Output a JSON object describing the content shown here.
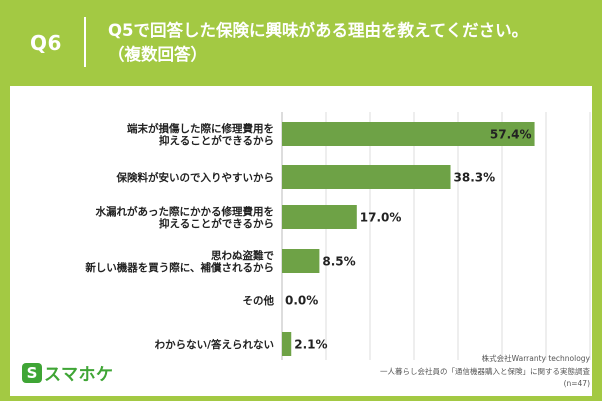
{
  "header": {
    "qnum": "Q6",
    "title": "Q5で回答した保険に興味がある理由を教えてください。",
    "subtitle": "（複数回答）"
  },
  "footer": {
    "logo_mark": "S",
    "logo_text": "スマホケ",
    "source1": "株式会社Warranty technology",
    "source2": "一人暮らし会社員の「通信機器購入と保険」に関する実態調査",
    "n": "(n=47)"
  },
  "colors": {
    "background": "#a3c943",
    "bar": "#6ea246",
    "text": "#222222"
  },
  "chart_data": {
    "type": "bar",
    "orientation": "horizontal",
    "categories": [
      [
        "端末が損傷した際に修理費用を",
        "抑えることができるから"
      ],
      [
        "保険料が安いので入りやすいから"
      ],
      [
        "水漏れがあった際にかかる修理費用を",
        "抑えることができるから"
      ],
      [
        "思わぬ盗難で",
        "新しい機器を買う際に、補償されるから"
      ],
      [
        "その他"
      ],
      [
        "わからない/答えられない"
      ]
    ],
    "values": [
      57.4,
      38.3,
      17.0,
      8.5,
      0.0,
      2.1
    ],
    "value_labels": [
      "57.4%",
      "38.3%",
      "17.0%",
      "8.5%",
      "0.0%",
      "2.1%"
    ],
    "xlim": [
      0,
      70
    ],
    "grid": true
  }
}
